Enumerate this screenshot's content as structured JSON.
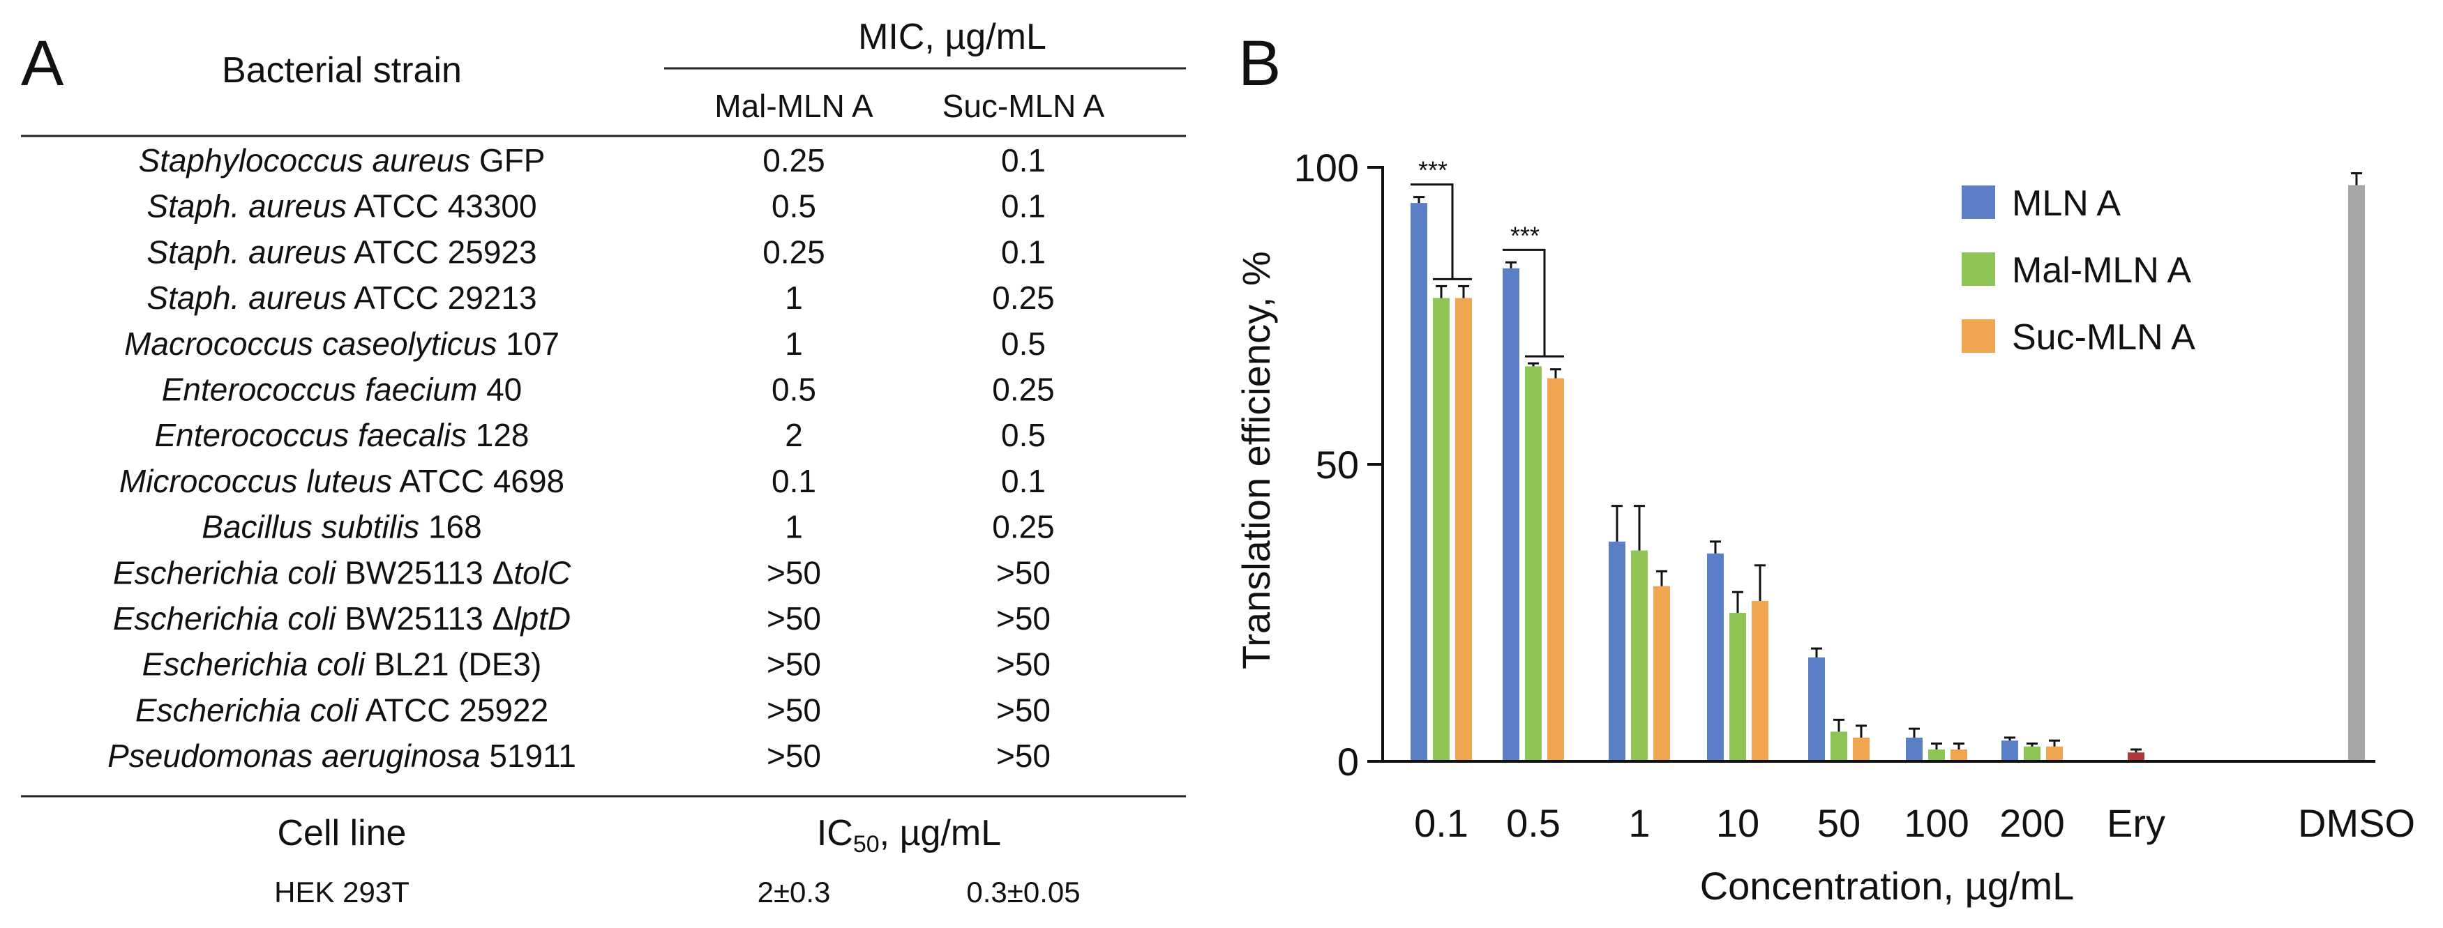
{
  "panel_a": {
    "letter": "A",
    "header": {
      "strain_col": "Bacterial strain",
      "mic_group": "MIC, µg/mL",
      "col1": "Mal-MLN A",
      "col2": "Suc-MLN A"
    },
    "rows": [
      {
        "name": [
          {
            "t": "Staphylococcus aureus",
            "i": true
          },
          {
            "t": " GFP",
            "i": false
          }
        ],
        "mal": "0.25",
        "suc": "0.1"
      },
      {
        "name": [
          {
            "t": "Staph. aureus",
            "i": true
          },
          {
            "t": " ATCC 43300",
            "i": false
          }
        ],
        "mal": "0.5",
        "suc": "0.1"
      },
      {
        "name": [
          {
            "t": "Staph. aureus",
            "i": true
          },
          {
            "t": " ATCC 25923",
            "i": false
          }
        ],
        "mal": "0.25",
        "suc": "0.1"
      },
      {
        "name": [
          {
            "t": "Staph. aureus",
            "i": true
          },
          {
            "t": " ATCC 29213",
            "i": false
          }
        ],
        "mal": "1",
        "suc": "0.25"
      },
      {
        "name": [
          {
            "t": "Macrococcus caseolyticus",
            "i": true
          },
          {
            "t": " 107",
            "i": false
          }
        ],
        "mal": "1",
        "suc": "0.5"
      },
      {
        "name": [
          {
            "t": "Enterococcus faecium",
            "i": true
          },
          {
            "t": " 40",
            "i": false
          }
        ],
        "mal": "0.5",
        "suc": "0.25"
      },
      {
        "name": [
          {
            "t": "Enterococcus faecalis",
            "i": true
          },
          {
            "t": " 128",
            "i": false
          }
        ],
        "mal": "2",
        "suc": "0.5"
      },
      {
        "name": [
          {
            "t": "Micrococcus luteus",
            "i": true
          },
          {
            "t": " ATCC 4698",
            "i": false
          }
        ],
        "mal": "0.1",
        "suc": "0.1"
      },
      {
        "name": [
          {
            "t": "Bacillus subtilis",
            "i": true
          },
          {
            "t": " 168",
            "i": false
          }
        ],
        "mal": "1",
        "suc": "0.25"
      },
      {
        "name": [
          {
            "t": "Escherichia coli",
            "i": true
          },
          {
            "t": " BW25113 Δ",
            "i": false
          },
          {
            "t": "tolC",
            "i": true
          }
        ],
        "mal": ">50",
        "suc": ">50"
      },
      {
        "name": [
          {
            "t": "Escherichia coli",
            "i": true
          },
          {
            "t": " BW25113 Δ",
            "i": false
          },
          {
            "t": "lptD",
            "i": true
          }
        ],
        "mal": ">50",
        "suc": ">50"
      },
      {
        "name": [
          {
            "t": "Escherichia coli",
            "i": true
          },
          {
            "t": "  BL21 (DE3)",
            "i": false
          }
        ],
        "mal": ">50",
        "suc": ">50"
      },
      {
        "name": [
          {
            "t": "Escherichia coli",
            "i": true
          },
          {
            "t": " ATCC 25922",
            "i": false
          }
        ],
        "mal": ">50",
        "suc": ">50"
      },
      {
        "name": [
          {
            "t": "Pseudomonas aeruginosa",
            "i": true
          },
          {
            "t": " 51911",
            "i": false
          }
        ],
        "mal": ">50",
        "suc": ">50"
      }
    ],
    "cell_header": {
      "col": "Cell line",
      "ic_main": "IC",
      "ic_sub": "50",
      "ic_unit": ", µg/mL"
    },
    "cell_rows": [
      {
        "name": "HEK 293T",
        "mal": "2±0.3",
        "suc": "0.3±0.05"
      }
    ]
  },
  "panel_b": {
    "letter": "B",
    "chart_data": {
      "type": "bar",
      "title": "",
      "xlabel": "Concentration, µg/mL",
      "ylabel": "Translation efficiency, %",
      "ylim": [
        0,
        100
      ],
      "yticks": [
        "0",
        "50",
        "100"
      ],
      "categories": [
        "0.1",
        "0.5",
        "1",
        "10",
        "50",
        "100",
        "200",
        "Ery",
        "DMSO"
      ],
      "series": [
        {
          "name": "MLN A",
          "color": "#5b7fc7",
          "values": [
            94,
            83,
            37,
            35,
            17.5,
            4,
            3.5,
            null,
            null
          ],
          "errors": [
            1,
            1,
            6,
            2,
            1.5,
            1.5,
            0.5,
            null,
            null
          ]
        },
        {
          "name": "Mal-MLN A",
          "color": "#8dc455",
          "values": [
            78,
            66.5,
            35.5,
            25,
            5,
            2,
            2.5,
            null,
            null
          ],
          "errors": [
            2,
            0.5,
            7.5,
            3.5,
            2,
            1,
            0.5,
            null,
            null
          ]
        },
        {
          "name": "Suc-MLN A",
          "color": "#f0a650",
          "values": [
            78,
            64.5,
            29.5,
            27,
            4,
            2,
            2.5,
            null,
            null
          ],
          "errors": [
            2,
            1.5,
            2.5,
            6,
            2,
            1,
            1,
            null,
            null
          ]
        }
      ],
      "singles": [
        {
          "category": "Ery",
          "value": 1.5,
          "error": 0.5,
          "color": "#b03a3a"
        },
        {
          "category": "DMSO",
          "value": 97,
          "error": 2,
          "color": "#a6a6a6"
        }
      ],
      "significance": [
        {
          "category": "0.1",
          "label": "***"
        },
        {
          "category": "0.5",
          "label": "***"
        }
      ],
      "legend_position": "top-right",
      "grid": false
    }
  }
}
